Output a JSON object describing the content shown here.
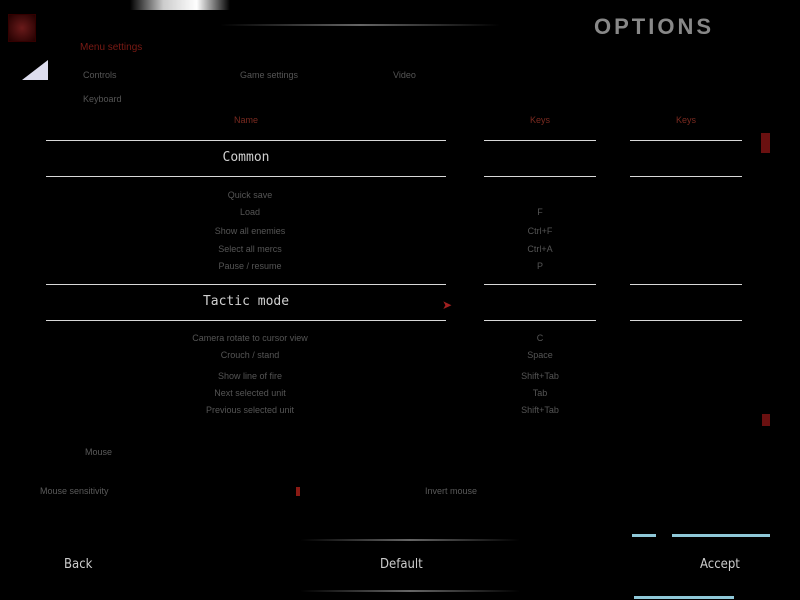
{
  "header": {
    "title": "OPTIONS",
    "subtitle": "Menu settings",
    "tabs": [
      "Controls",
      "Game settings",
      "Video"
    ],
    "sub_tab": "Keyboard"
  },
  "table": {
    "col_name": "Name",
    "col_keys1": "Keys",
    "col_keys2": "Keys",
    "sections": [
      {
        "title": "Common",
        "rows": [
          {
            "name": "Quick save",
            "key": ""
          },
          {
            "name": "Load",
            "key": "F"
          },
          {
            "name": "Show all enemies",
            "key": "Ctrl+F"
          },
          {
            "name": "Select all mercs",
            "key": "Ctrl+A"
          },
          {
            "name": "Pause / resume",
            "key": "P"
          }
        ]
      },
      {
        "title": "Tactic mode",
        "rows": [
          {
            "name": "Camera rotate to cursor view",
            "key": "C"
          },
          {
            "name": "Crouch / stand",
            "key": "Space"
          },
          {
            "name": "Show line of fire",
            "key": "Shift+Tab"
          },
          {
            "name": "Next selected unit",
            "key": "Tab"
          },
          {
            "name": "Previous selected unit",
            "key": "Shift+Tab"
          }
        ]
      }
    ]
  },
  "extra": {
    "label": "Mouse",
    "left_option": "Mouse sensitivity",
    "right_option": "Invert mouse"
  },
  "footer": {
    "back": "Back",
    "default": "Default",
    "accept": "Accept"
  },
  "colors": {
    "accent": "#8a1a14",
    "text": "#d0d0d0",
    "background": "#000000"
  }
}
